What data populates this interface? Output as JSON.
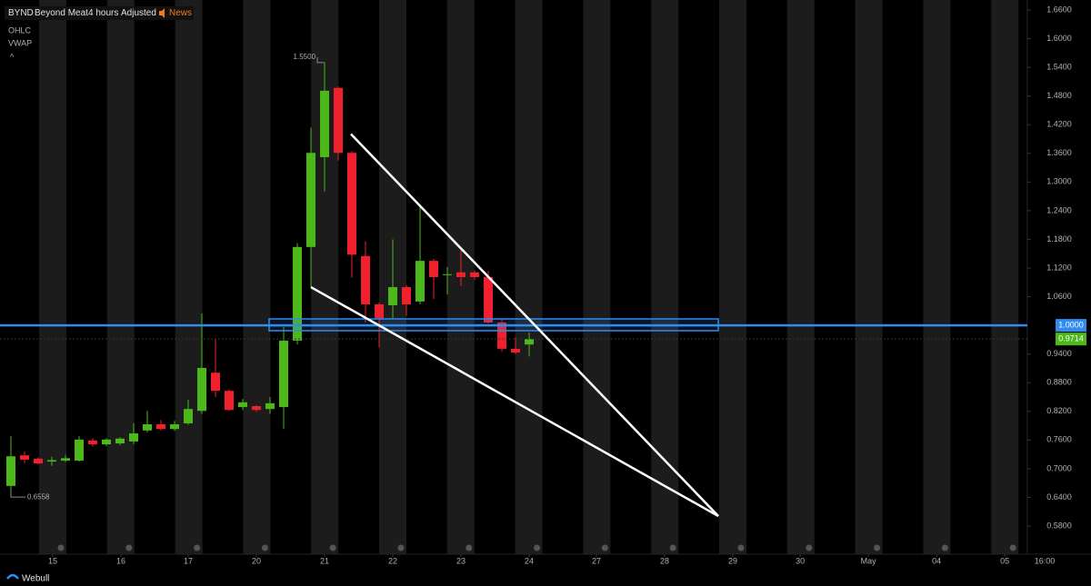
{
  "header": {
    "symbol": "BYND",
    "name": "Beyond Meat",
    "interval": "4 hours",
    "adjust": "Adjusted",
    "news": "News",
    "indicators": [
      "OHLC",
      "VWAP"
    ]
  },
  "footer": {
    "brand": "Webull",
    "time_label": "16:00"
  },
  "chart_data": {
    "type": "candlestick",
    "up_color": "#4cb81a",
    "down_color": "#f0202e",
    "open": [
      0.664,
      0.728,
      0.721,
      0.715,
      0.717,
      0.717,
      0.759,
      0.751,
      0.753,
      0.757,
      0.78,
      0.793,
      0.783,
      0.795,
      0.821,
      0.901,
      0.863,
      0.829,
      0.831,
      0.825,
      0.829,
      0.968,
      1.164,
      1.352,
      1.497,
      1.361,
      1.145,
      1.044,
      1.042,
      1.08,
      1.05,
      1.135,
      1.105,
      1.111,
      1.111,
      1.101,
      1.006,
      0.951,
      0.96
    ],
    "high": [
      0.768,
      0.736,
      0.724,
      0.725,
      0.729,
      0.768,
      0.764,
      0.764,
      0.766,
      0.795,
      0.821,
      0.802,
      0.8,
      0.844,
      1.025,
      0.972,
      0.866,
      0.846,
      0.833,
      0.85,
      0.997,
      1.172,
      1.414,
      1.55,
      1.5,
      1.365,
      1.176,
      1.048,
      1.18,
      1.084,
      1.248,
      1.139,
      1.122,
      1.16,
      1.115,
      1.114,
      1.012,
      0.975,
      0.985
    ],
    "low": [
      0.6558,
      0.712,
      0.709,
      0.706,
      0.714,
      0.715,
      0.746,
      0.747,
      0.749,
      0.752,
      0.776,
      0.78,
      0.779,
      0.792,
      0.815,
      0.85,
      0.821,
      0.823,
      0.819,
      0.815,
      0.783,
      0.96,
      1.08,
      1.28,
      1.345,
      1.1,
      1.006,
      0.954,
      1.015,
      1.02,
      1.044,
      1.055,
      1.065,
      1.082,
      1.095,
      1.004,
      0.945,
      0.94,
      0.935
    ],
    "close": [
      0.726,
      0.719,
      0.711,
      0.718,
      0.722,
      0.761,
      0.751,
      0.761,
      0.763,
      0.774,
      0.793,
      0.783,
      0.793,
      0.825,
      0.911,
      0.863,
      0.823,
      0.839,
      0.823,
      0.837,
      0.968,
      1.164,
      1.361,
      1.491,
      1.361,
      1.148,
      1.044,
      1.015,
      1.08,
      1.044,
      1.135,
      1.101,
      1.107,
      1.101,
      1.101,
      1.006,
      0.951,
      0.943,
      0.9714
    ],
    "xlim": [
      -0.8,
      74.53
    ],
    "xticks": [
      {
        "value": 3.07,
        "label": "15"
      },
      {
        "value": 8.07,
        "label": "16"
      },
      {
        "value": 13,
        "label": "17"
      },
      {
        "value": 18,
        "label": "20"
      },
      {
        "value": 23,
        "label": "21"
      },
      {
        "value": 28,
        "label": "22"
      },
      {
        "value": 33,
        "label": "23"
      },
      {
        "value": 38,
        "label": "24"
      },
      {
        "value": 42.93,
        "label": "27"
      },
      {
        "value": 47.93,
        "label": "28"
      },
      {
        "value": 52.93,
        "label": "29"
      },
      {
        "value": 57.87,
        "label": "30"
      },
      {
        "value": 62.87,
        "label": "May"
      },
      {
        "value": 67.87,
        "label": "04"
      },
      {
        "value": 72.87,
        "label": "05"
      }
    ],
    "ylim": [
      0.5211,
      1.6809
    ],
    "yticks": [
      {
        "value": 1.66,
        "label": "1.6600"
      },
      {
        "value": 1.6,
        "label": "1.6000"
      },
      {
        "value": 1.54,
        "label": "1.5400"
      },
      {
        "value": 1.48,
        "label": "1.4800"
      },
      {
        "value": 1.42,
        "label": "1.4200"
      },
      {
        "value": 1.36,
        "label": "1.3600"
      },
      {
        "value": 1.3,
        "label": "1.3000"
      },
      {
        "value": 1.24,
        "label": "1.2400"
      },
      {
        "value": 1.18,
        "label": "1.1800"
      },
      {
        "value": 1.12,
        "label": "1.1200"
      },
      {
        "value": 1.06,
        "label": "1.0600"
      },
      {
        "value": 0.94,
        "label": "0.9400"
      },
      {
        "value": 0.88,
        "label": "0.8800"
      },
      {
        "value": 0.82,
        "label": "0.8200"
      },
      {
        "value": 0.76,
        "label": "0.7600"
      },
      {
        "value": 0.7,
        "label": "0.7000"
      },
      {
        "value": 0.64,
        "label": "0.6400"
      },
      {
        "value": 0.58,
        "label": "0.5800"
      }
    ],
    "high_label": {
      "value": 1.55,
      "label": "1.5500"
    },
    "low_label": {
      "value": 0.6558,
      "label": "0.6558"
    },
    "price_line": {
      "value": 1.0,
      "label": "1.0000",
      "color": "#2f8cf0"
    },
    "last_price": {
      "value": 0.9714,
      "label": "0.9714",
      "color": "#4cb81a"
    },
    "zone": {
      "x": [
        18.93,
        51.87
      ],
      "y": [
        0.9888,
        1.0135
      ]
    },
    "trend_lines": [
      {
        "x": [
          24.93,
          51.87
        ],
        "y": [
          1.4005,
          0.6009
        ]
      },
      {
        "x": [
          22,
          51.87
        ],
        "y": [
          1.08,
          0.6009
        ]
      }
    ]
  }
}
